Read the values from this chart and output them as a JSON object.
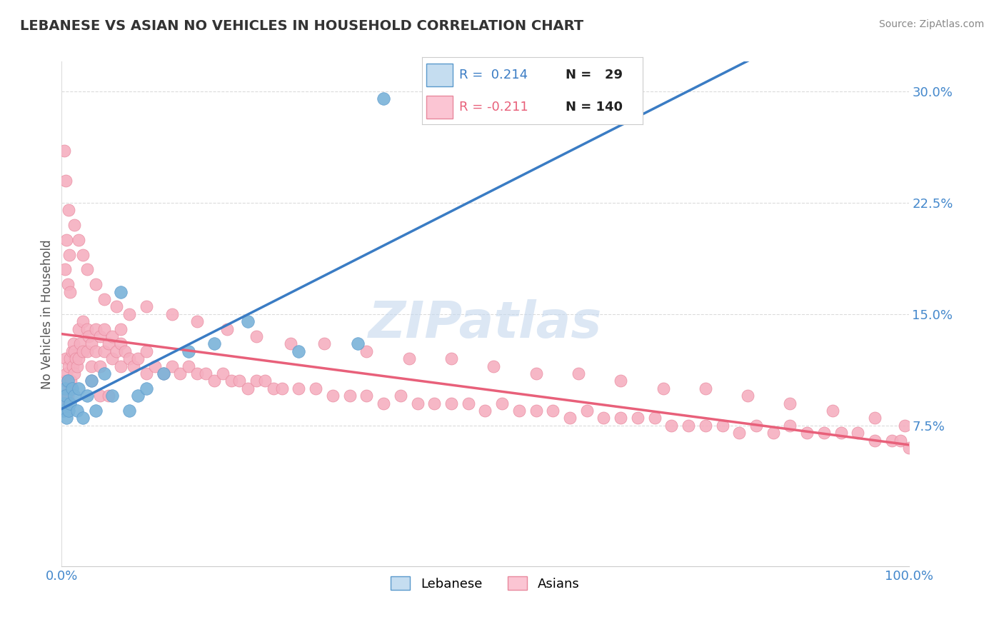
{
  "title": "LEBANESE VS ASIAN NO VEHICLES IN HOUSEHOLD CORRELATION CHART",
  "source": "Source: ZipAtlas.com",
  "ylabel": "No Vehicles in Household",
  "xlim": [
    0,
    100
  ],
  "ylim": [
    -2,
    32
  ],
  "ytick_vals": [
    0,
    7.5,
    15.0,
    22.5,
    30.0
  ],
  "ytick_labels": [
    "",
    "7.5%",
    "15.0%",
    "22.5%",
    "30.0%"
  ],
  "xtick_vals": [
    0,
    25,
    50,
    75,
    100
  ],
  "xtick_labels": [
    "0.0%",
    "",
    "",
    "",
    "100.0%"
  ],
  "blue_color": "#7ab3d9",
  "blue_edge": "#5a99cc",
  "pink_color": "#f5afc0",
  "pink_edge": "#e8889d",
  "trend_blue": "#3a7cc4",
  "trend_pink": "#e8607a",
  "grid_color": "#cccccc",
  "watermark_color": "#c5d8ee",
  "title_color": "#333333",
  "axis_label_color": "#555555",
  "tick_color": "#4488cc",
  "background_color": "#ffffff",
  "lebanese_x": [
    0.2,
    0.3,
    0.4,
    0.5,
    0.6,
    0.7,
    0.8,
    1.0,
    1.2,
    1.5,
    1.8,
    2.0,
    2.5,
    3.0,
    3.5,
    4.0,
    5.0,
    6.0,
    7.0,
    8.0,
    9.0,
    10.0,
    12.0,
    15.0,
    18.0,
    22.0,
    28.0,
    35.0,
    38.0
  ],
  "lebanese_y": [
    8.5,
    9.0,
    10.0,
    9.5,
    8.0,
    10.5,
    8.5,
    9.0,
    10.0,
    9.5,
    8.5,
    10.0,
    8.0,
    9.5,
    10.5,
    8.5,
    11.0,
    9.5,
    16.5,
    8.5,
    9.5,
    10.0,
    11.0,
    12.5,
    13.0,
    14.5,
    12.5,
    13.0,
    29.5
  ],
  "asian_x": [
    0.2,
    0.3,
    0.4,
    0.5,
    0.5,
    0.6,
    0.7,
    0.8,
    0.9,
    1.0,
    1.1,
    1.2,
    1.3,
    1.4,
    1.5,
    1.5,
    1.7,
    1.8,
    2.0,
    2.0,
    2.2,
    2.5,
    2.5,
    3.0,
    3.0,
    3.2,
    3.5,
    3.5,
    4.0,
    4.0,
    4.5,
    4.5,
    5.0,
    5.0,
    5.5,
    6.0,
    6.0,
    6.5,
    7.0,
    7.0,
    7.5,
    8.0,
    8.5,
    9.0,
    10.0,
    10.0,
    11.0,
    12.0,
    13.0,
    14.0,
    15.0,
    16.0,
    17.0,
    18.0,
    19.0,
    20.0,
    21.0,
    22.0,
    23.0,
    24.0,
    25.0,
    26.0,
    28.0,
    30.0,
    32.0,
    34.0,
    36.0,
    38.0,
    40.0,
    42.0,
    44.0,
    46.0,
    48.0,
    50.0,
    52.0,
    54.0,
    56.0,
    58.0,
    60.0,
    62.0,
    64.0,
    66.0,
    68.0,
    70.0,
    72.0,
    74.0,
    76.0,
    78.0,
    80.0,
    82.0,
    84.0,
    86.0,
    88.0,
    90.0,
    92.0,
    94.0,
    96.0,
    98.0,
    99.0,
    100.0,
    0.3,
    0.4,
    0.5,
    0.6,
    0.7,
    0.8,
    0.9,
    1.0,
    1.5,
    2.0,
    2.5,
    3.0,
    4.0,
    5.0,
    6.5,
    8.0,
    10.0,
    13.0,
    16.0,
    19.5,
    23.0,
    27.0,
    31.0,
    36.0,
    41.0,
    46.0,
    51.0,
    56.0,
    61.0,
    66.0,
    71.0,
    76.0,
    81.0,
    86.0,
    91.0,
    96.0,
    99.5,
    3.5,
    4.5,
    5.5,
    7.0
  ],
  "asian_y": [
    9.5,
    9.0,
    10.5,
    12.0,
    9.0,
    11.0,
    9.5,
    11.5,
    10.0,
    12.0,
    10.5,
    12.5,
    11.5,
    13.0,
    12.5,
    11.0,
    12.0,
    11.5,
    14.0,
    12.0,
    13.0,
    14.5,
    12.5,
    14.0,
    12.5,
    13.5,
    13.0,
    11.5,
    14.0,
    12.5,
    13.5,
    11.5,
    14.0,
    12.5,
    13.0,
    13.5,
    12.0,
    12.5,
    13.0,
    11.5,
    12.5,
    12.0,
    11.5,
    12.0,
    12.5,
    11.0,
    11.5,
    11.0,
    11.5,
    11.0,
    11.5,
    11.0,
    11.0,
    10.5,
    11.0,
    10.5,
    10.5,
    10.0,
    10.5,
    10.5,
    10.0,
    10.0,
    10.0,
    10.0,
    9.5,
    9.5,
    9.5,
    9.0,
    9.5,
    9.0,
    9.0,
    9.0,
    9.0,
    8.5,
    9.0,
    8.5,
    8.5,
    8.5,
    8.0,
    8.5,
    8.0,
    8.0,
    8.0,
    8.0,
    7.5,
    7.5,
    7.5,
    7.5,
    7.0,
    7.5,
    7.0,
    7.5,
    7.0,
    7.0,
    7.0,
    7.0,
    6.5,
    6.5,
    6.5,
    6.0,
    26.0,
    18.0,
    24.0,
    20.0,
    17.0,
    22.0,
    19.0,
    16.5,
    21.0,
    20.0,
    19.0,
    18.0,
    17.0,
    16.0,
    15.5,
    15.0,
    15.5,
    15.0,
    14.5,
    14.0,
    13.5,
    13.0,
    13.0,
    12.5,
    12.0,
    12.0,
    11.5,
    11.0,
    11.0,
    10.5,
    10.0,
    10.0,
    9.5,
    9.0,
    8.5,
    8.0,
    7.5,
    10.5,
    9.5,
    9.5,
    14.0
  ]
}
